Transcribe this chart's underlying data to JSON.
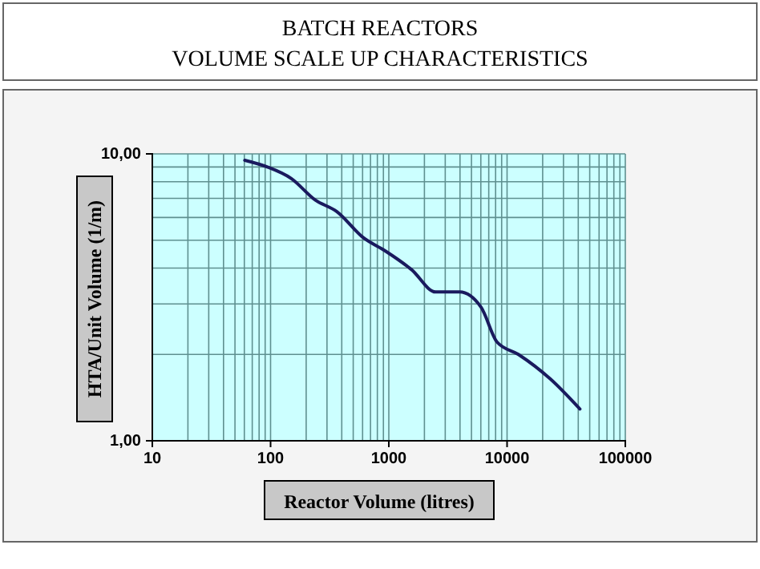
{
  "chart_data": {
    "type": "line",
    "title": "BATCH REACTORS",
    "subtitle": "VOLUME SCALE UP CHARACTERISTICS",
    "xlabel": "Reactor Volume (litres)",
    "ylabel": "HTA/Unit Volume (1/m)",
    "log": "xy",
    "grid": true,
    "marker": "none",
    "line_style": "solid",
    "xlim": [
      10,
      100000
    ],
    "xticks": [
      10,
      100,
      1000,
      10000,
      100000
    ],
    "ylim": [
      1,
      10
    ],
    "yticks": [
      {
        "value": 1,
        "label": "1,00"
      },
      {
        "value": 10,
        "label": "10,00"
      }
    ],
    "series": [
      {
        "color": "#1a1a5e",
        "x": [
          60.5,
          94,
          150,
          239,
          362,
          610,
          925,
          1555,
          2490,
          3970,
          6030,
          8220,
          12470,
          23300,
          41300
        ],
        "values": [
          9.5,
          9.0,
          8.2,
          6.9,
          6.3,
          5.1,
          4.6,
          3.95,
          3.3,
          3.3,
          2.92,
          2.21,
          2.0,
          1.64,
          1.29
        ]
      }
    ]
  }
}
